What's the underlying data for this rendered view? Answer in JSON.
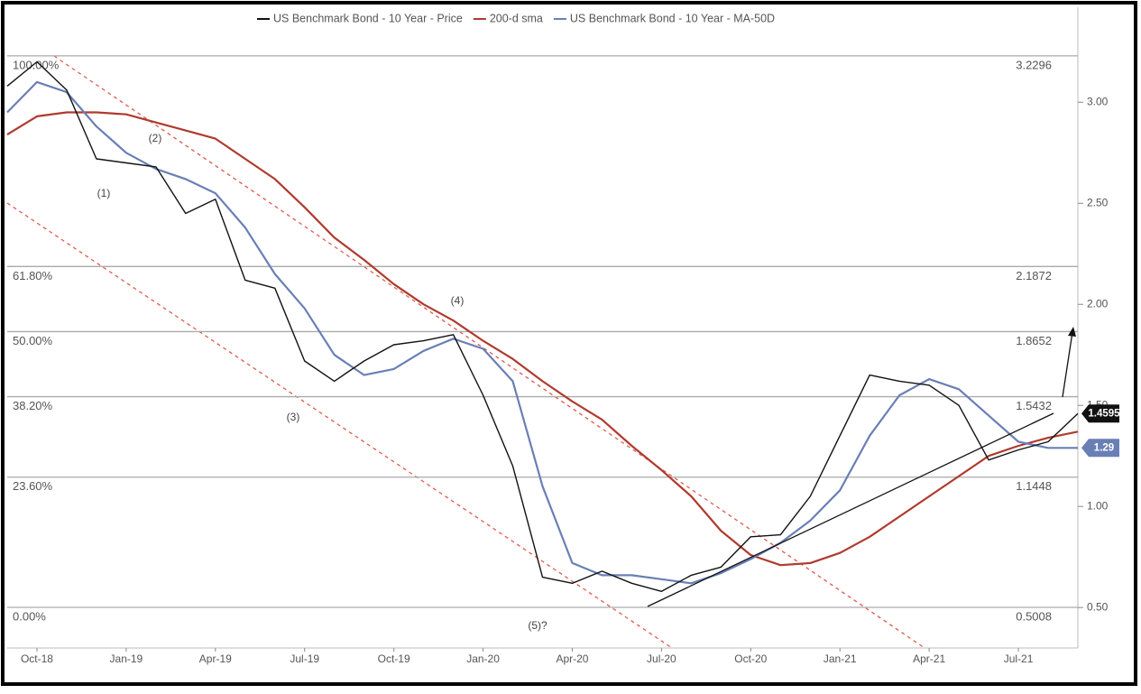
{
  "chart_data": {
    "type": "line",
    "x": [
      "2018-09",
      "2018-10",
      "2018-11",
      "2018-12",
      "2019-01",
      "2019-02",
      "2019-03",
      "2019-04",
      "2019-05",
      "2019-06",
      "2019-07",
      "2019-08",
      "2019-09",
      "2019-10",
      "2019-11",
      "2019-12",
      "2020-01",
      "2020-02",
      "2020-03",
      "2020-04",
      "2020-05",
      "2020-06",
      "2020-07",
      "2020-08",
      "2020-09",
      "2020-10",
      "2020-11",
      "2020-12",
      "2021-01",
      "2021-02",
      "2021-03",
      "2021-04",
      "2021-05",
      "2021-06",
      "2021-07",
      "2021-08",
      "2021-09"
    ],
    "series": [
      {
        "name": "US Benchmark Bond - 10 Year - Price",
        "color": "#111111",
        "values": [
          3.08,
          3.2,
          3.06,
          2.72,
          2.7,
          2.68,
          2.45,
          2.52,
          2.12,
          2.08,
          1.72,
          1.62,
          1.72,
          1.8,
          1.82,
          1.85,
          1.55,
          1.2,
          0.65,
          0.62,
          0.68,
          0.62,
          0.58,
          0.66,
          0.7,
          0.85,
          0.86,
          1.05,
          1.35,
          1.65,
          1.62,
          1.6,
          1.5,
          1.23,
          1.28,
          1.32,
          1.46
        ]
      },
      {
        "name": "200-d sma",
        "color": "#b03a2e",
        "values": [
          2.84,
          2.93,
          2.95,
          2.95,
          2.94,
          2.9,
          2.86,
          2.82,
          2.72,
          2.62,
          2.48,
          2.33,
          2.22,
          2.1,
          2.0,
          1.92,
          1.82,
          1.73,
          1.62,
          1.52,
          1.43,
          1.3,
          1.18,
          1.05,
          0.88,
          0.76,
          0.71,
          0.72,
          0.77,
          0.85,
          0.95,
          1.05,
          1.15,
          1.25,
          1.3,
          1.34,
          1.37
        ]
      },
      {
        "name": "US Benchmark Bond - 10 Year - MA-50D",
        "color": "#6a7fb5",
        "values": [
          2.95,
          3.1,
          3.05,
          2.88,
          2.75,
          2.67,
          2.62,
          2.55,
          2.38,
          2.15,
          1.98,
          1.75,
          1.65,
          1.68,
          1.77,
          1.83,
          1.78,
          1.62,
          1.1,
          0.72,
          0.66,
          0.66,
          0.64,
          0.62,
          0.67,
          0.74,
          0.82,
          0.93,
          1.08,
          1.35,
          1.55,
          1.63,
          1.58,
          1.45,
          1.32,
          1.29,
          1.29
        ]
      }
    ],
    "xlim": [
      "2018-09",
      "2021-09"
    ],
    "xticks": [
      {
        "value": "2018-10",
        "label": "Oct-18"
      },
      {
        "value": "2019-01",
        "label": "Jan-19"
      },
      {
        "value": "2019-04",
        "label": "Apr-19"
      },
      {
        "value": "2019-07",
        "label": "Jul-19"
      },
      {
        "value": "2019-10",
        "label": "Oct-19"
      },
      {
        "value": "2020-01",
        "label": "Jan-20"
      },
      {
        "value": "2020-04",
        "label": "Apr-20"
      },
      {
        "value": "2020-07",
        "label": "Jul-20"
      },
      {
        "value": "2020-10",
        "label": "Oct-20"
      },
      {
        "value": "2021-01",
        "label": "Jan-21"
      },
      {
        "value": "2021-04",
        "label": "Apr-21"
      },
      {
        "value": "2021-07",
        "label": "Jul-21"
      }
    ],
    "ylim": [
      0.3,
      3.47
    ],
    "yticks": [
      {
        "value": 0.5,
        "label": "0.50"
      },
      {
        "value": 1,
        "label": "1.00"
      },
      {
        "value": 1.5,
        "label": "1.50"
      },
      {
        "value": 2,
        "label": "2.00"
      },
      {
        "value": 2.5,
        "label": "2.50"
      },
      {
        "value": 3,
        "label": "3.00"
      }
    ],
    "fib_levels": [
      {
        "label": "100.00%",
        "value": 3.2296
      },
      {
        "label": "61.80%",
        "value": 2.1872
      },
      {
        "label": "50.00%",
        "value": 1.8652
      },
      {
        "label": "38.20%",
        "value": 1.5432
      },
      {
        "label": "23.60%",
        "value": 1.1448
      },
      {
        "label": "0.00%",
        "value": 0.5008
      }
    ],
    "price_tags": [
      {
        "value": 1.4595,
        "color": "#111111"
      },
      {
        "value": 1.29,
        "color": "#6a7fb5"
      }
    ],
    "annotations": [
      "(1)",
      "(2)",
      "(3)",
      "(4)",
      "(5)?"
    ]
  }
}
